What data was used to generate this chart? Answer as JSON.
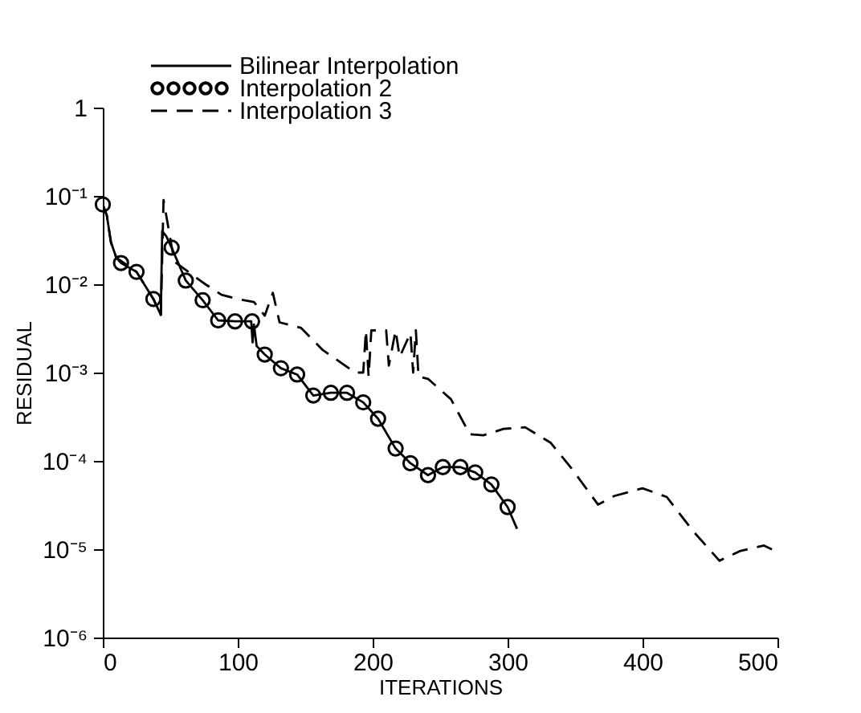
{
  "chart_data": {
    "type": "line",
    "xlabel": "ITERATIONS",
    "ylabel": "RESIDUAL",
    "log": "y",
    "grid": false,
    "legend": "top",
    "xlim": [
      0,
      500
    ],
    "xticks": [
      0,
      100,
      200,
      300,
      400,
      500
    ],
    "ylim": [
      1e-06,
      1
    ],
    "yticks": [
      {
        "value": 1e-06,
        "label": "10⁻⁶"
      },
      {
        "value": 1e-05,
        "label": "10⁻⁵"
      },
      {
        "value": 0.0001,
        "label": "10⁻⁴"
      },
      {
        "value": 0.001,
        "label": "10⁻³"
      },
      {
        "value": 0.01,
        "label": "10⁻²"
      },
      {
        "value": 0.1,
        "label": "10⁻¹"
      },
      1
    ],
    "series": [
      {
        "name": "Bilinear Interpolation",
        "line_style": "solid",
        "marker": "none",
        "color": "#000000",
        "x": [
          0,
          3,
          6,
          10,
          13.5,
          25,
          37.5,
          43,
          44,
          47,
          51,
          61.5,
          74,
          85.5,
          98,
          110,
          111,
          112,
          114,
          120,
          132,
          144,
          156,
          169,
          181,
          193,
          204,
          217,
          228,
          241,
          252,
          265,
          276,
          288,
          300,
          307
        ],
        "values": [
          0.08,
          0.06,
          0.03,
          0.02,
          0.0174,
          0.0138,
          0.0068,
          0.0045,
          0.04,
          0.035,
          0.026,
          0.011,
          0.0066,
          0.0039,
          0.0038,
          0.0038,
          0.0022,
          0.0035,
          0.002,
          0.0016,
          0.00112,
          0.00095,
          0.00055,
          0.00059,
          0.00059,
          0.00046,
          0.0003,
          0.000138,
          9.4e-05,
          6.9e-05,
          8.5e-05,
          8.5e-05,
          7.4e-05,
          5.4e-05,
          3e-05,
          1.7e-05
        ]
      },
      {
        "name": "Interpolation 2",
        "type": "scatter",
        "marker": "circle",
        "color": "#000000",
        "x": [
          0,
          13.5,
          25,
          37.5,
          51,
          61.5,
          74,
          85.5,
          98,
          110.6,
          120,
          132,
          144,
          156,
          169,
          181,
          193,
          204,
          217,
          228,
          241,
          252,
          265,
          276,
          288,
          300
        ],
        "values": [
          0.08,
          0.0174,
          0.0138,
          0.0068,
          0.026,
          0.011,
          0.0066,
          0.0039,
          0.0038,
          0.0038,
          0.0016,
          0.00112,
          0.00095,
          0.00055,
          0.00059,
          0.00059,
          0.00046,
          0.0003,
          0.000138,
          9.4e-05,
          6.9e-05,
          8.5e-05,
          8.5e-05,
          7.4e-05,
          5.4e-05,
          3e-05
        ]
      },
      {
        "name": "Interpolation 3",
        "line_style": "dashed",
        "marker": "none",
        "color": "#000000",
        "x": [
          0,
          3,
          6,
          10,
          25,
          37.5,
          43,
          45,
          53,
          76,
          88,
          100,
          112,
          120,
          126,
          131,
          147,
          163,
          187,
          193,
          195,
          197,
          199,
          210,
          212,
          217,
          220,
          228,
          230,
          232,
          234,
          241,
          258,
          272,
          282,
          297,
          313,
          332,
          348,
          367,
          379,
          400,
          418,
          437.5,
          457,
          472,
          490,
          500
        ],
        "values": [
          0.08,
          0.06,
          0.03,
          0.02,
          0.0138,
          0.0068,
          0.0045,
          0.09,
          0.018,
          0.01,
          0.0076,
          0.0068,
          0.0063,
          0.0044,
          0.008,
          0.0037,
          0.0032,
          0.0018,
          0.001,
          0.001,
          0.003,
          0.0009,
          0.003,
          0.003,
          0.0012,
          0.003,
          0.0015,
          0.0028,
          0.001,
          0.003,
          0.0009,
          0.00085,
          0.0005,
          0.0002,
          0.000195,
          0.00023,
          0.00024,
          0.00016,
          8e-05,
          3.2e-05,
          4e-05,
          4.9e-05,
          3.9e-05,
          1.6e-05,
          7.4e-06,
          9.5e-06,
          1.1e-05,
          9.3e-06
        ]
      }
    ]
  }
}
